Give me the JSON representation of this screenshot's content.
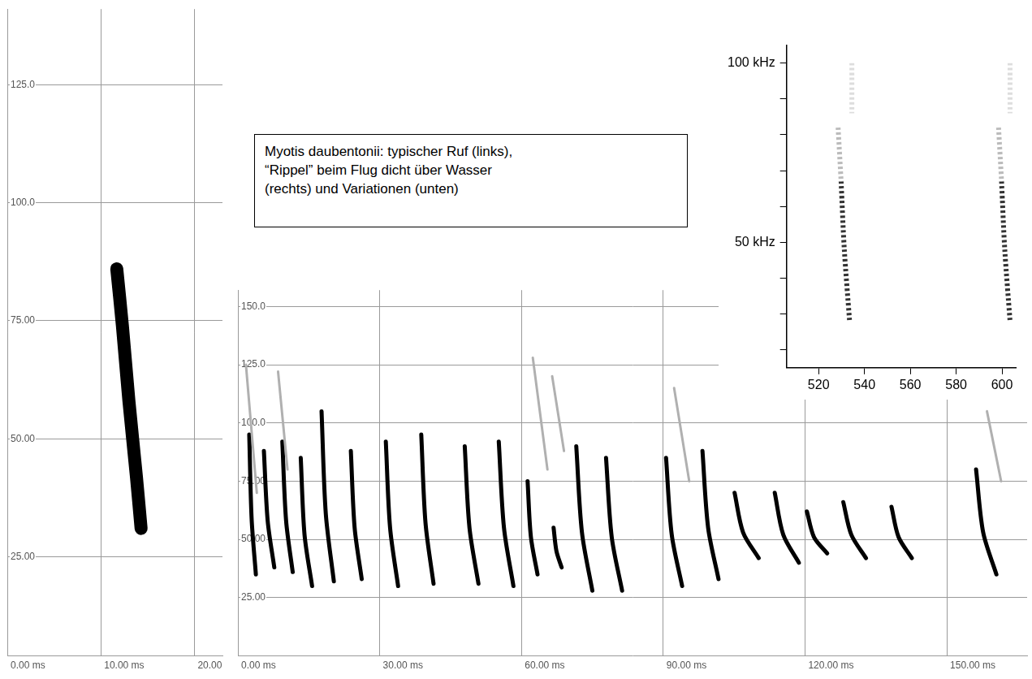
{
  "caption": [
    "Myotis daubentonii: typischer Ruf (links),",
    "“Rippel” beim Flug dicht über Wasser",
    "(rechts) und Variationen (unten)"
  ],
  "chart_data": [
    {
      "type": "line",
      "grid": true,
      "xlim": [
        0,
        23
      ],
      "xticks": [
        {
          "value": 0,
          "label": "0.00 ms"
        },
        {
          "value": 10,
          "label": "10.00 ms"
        },
        {
          "value": 20,
          "label": "20.00"
        }
      ],
      "ylim": [
        4,
        141
      ],
      "yticks": [
        {
          "value": 25,
          "label": "25.00"
        },
        {
          "value": 50,
          "label": "50.00"
        },
        {
          "value": 75,
          "label": "75.00"
        },
        {
          "value": 100,
          "label": "100.0"
        },
        {
          "value": 125,
          "label": "125.0"
        }
      ],
      "series": [
        {
          "color": "#000000",
          "x": [
            11.7,
            12.3,
            13.0,
            13.8,
            14.3
          ],
          "values": [
            86,
            74,
            58,
            42,
            31
          ]
        }
      ]
    },
    {
      "type": "line",
      "grid": true,
      "xlim": [
        0,
        167
      ],
      "xticks": [
        {
          "value": 0,
          "label": "0.00 ms"
        },
        {
          "value": 30,
          "label": "30.00 ms"
        },
        {
          "value": 60,
          "label": "60.00 ms"
        },
        {
          "value": 90,
          "label": "90.00 ms"
        },
        {
          "value": 120,
          "label": "120.00 ms"
        },
        {
          "value": 150,
          "label": "150.00 ms"
        }
      ],
      "ylim": [
        0,
        157
      ],
      "yticks": [
        {
          "value": 25,
          "label": "25.00"
        },
        {
          "value": 50,
          "label": "50.00"
        },
        {
          "value": 75,
          "label": "75.00"
        },
        {
          "value": 100,
          "label": "100.0"
        },
        {
          "value": 125,
          "label": "125.0"
        },
        {
          "value": 150,
          "label": "150.0"
        }
      ],
      "series": [
        {
          "color": "#b0b0b0",
          "x": [
            1.7,
            4.0
          ],
          "values": [
            125,
            70
          ]
        },
        {
          "color": "#b0b0b0",
          "x": [
            8.5,
            10.5
          ],
          "values": [
            122,
            80
          ]
        },
        {
          "color": "#b0b0b0",
          "x": [
            62.4,
            65.5
          ],
          "values": [
            128,
            80
          ]
        },
        {
          "color": "#b0b0b0",
          "x": [
            66.5,
            69.0
          ],
          "values": [
            120,
            88
          ]
        },
        {
          "color": "#b0b0b0",
          "x": [
            92.3,
            95.5
          ],
          "values": [
            115,
            75
          ]
        },
        {
          "color": "#b0b0b0",
          "x": [
            158.5,
            161.5
          ],
          "values": [
            105,
            75
          ]
        },
        {
          "color": "#000000",
          "x": [
            2.4,
            2.9,
            3.8
          ],
          "values": [
            95,
            59,
            35
          ]
        },
        {
          "color": "#000000",
          "x": [
            5.5,
            6.3,
            7.7
          ],
          "values": [
            88,
            58,
            38
          ]
        },
        {
          "color": "#000000",
          "x": [
            9.4,
            10.2,
            11.6
          ],
          "values": [
            92,
            58,
            36
          ]
        },
        {
          "color": "#000000",
          "x": [
            13.3,
            14.1,
            15.7
          ],
          "values": [
            85,
            52,
            30
          ]
        },
        {
          "color": "#000000",
          "x": [
            17.7,
            18.6,
            20.3
          ],
          "values": [
            105,
            61,
            32
          ]
        },
        {
          "color": "#000000",
          "x": [
            23.9,
            24.7,
            26.2
          ],
          "values": [
            88,
            55,
            33
          ]
        },
        {
          "color": "#000000",
          "x": [
            31.3,
            32.2,
            33.9
          ],
          "values": [
            92,
            55,
            30
          ]
        },
        {
          "color": "#000000",
          "x": [
            38.8,
            39.7,
            41.4
          ],
          "values": [
            95,
            57,
            31
          ]
        },
        {
          "color": "#000000",
          "x": [
            48.0,
            49.0,
            50.9
          ],
          "values": [
            90,
            55,
            31
          ]
        },
        {
          "color": "#000000",
          "x": [
            55.2,
            56.3,
            58.3
          ],
          "values": [
            92,
            55,
            30
          ]
        },
        {
          "color": "#000000",
          "x": [
            61.3,
            62.0,
            63.4
          ],
          "values": [
            75,
            51,
            35
          ]
        },
        {
          "color": "#000000",
          "x": [
            66.8,
            67.4,
            68.5
          ],
          "values": [
            55,
            45,
            38
          ]
        },
        {
          "color": "#000000",
          "x": [
            71.6,
            72.8,
            75.0
          ],
          "values": [
            90,
            53,
            28
          ]
        },
        {
          "color": "#000000",
          "x": [
            77.9,
            79.1,
            81.3
          ],
          "values": [
            85,
            51,
            28
          ]
        },
        {
          "color": "#000000",
          "x": [
            90.6,
            91.8,
            94.0
          ],
          "values": [
            85,
            52,
            30
          ]
        },
        {
          "color": "#000000",
          "x": [
            98.3,
            99.5,
            101.7
          ],
          "values": [
            88,
            55,
            33
          ]
        },
        {
          "color": "#000000",
          "x": [
            105.1,
            106.9,
            110.2
          ],
          "values": [
            70,
            53,
            42
          ]
        },
        {
          "color": "#000000",
          "x": [
            113.6,
            115.4,
            118.7
          ],
          "values": [
            70,
            52,
            40
          ]
        },
        {
          "color": "#000000",
          "x": [
            120.4,
            121.9,
            124.7
          ],
          "values": [
            62,
            51,
            44
          ]
        },
        {
          "color": "#000000",
          "x": [
            128.1,
            129.8,
            132.9
          ],
          "values": [
            66,
            52,
            42
          ]
        },
        {
          "color": "#000000",
          "x": [
            138.3,
            139.8,
            142.6
          ],
          "values": [
            64,
            51,
            42
          ]
        },
        {
          "color": "#000000",
          "x": [
            156.2,
            157.7,
            160.5
          ],
          "values": [
            80,
            53,
            35
          ]
        }
      ]
    },
    {
      "type": "line",
      "grid": false,
      "xlim": [
        506,
        606
      ],
      "xticks": [
        520,
        540,
        560,
        580,
        600
      ],
      "ylim": [
        15,
        105
      ],
      "yticks": [
        {
          "value": 50,
          "label": "50 kHz"
        },
        {
          "value": 100,
          "label": "100 kHz"
        }
      ],
      "yminor": [
        20,
        30,
        40,
        60,
        70,
        80,
        90
      ],
      "series": [
        {
          "color": "#dddddd",
          "x": [
            534.5,
            534.5
          ],
          "values": [
            100,
            86
          ],
          "line_style": "dotted"
        },
        {
          "color": "#bbbbbb",
          "x": [
            528.5,
            529.8
          ],
          "values": [
            82,
            67
          ],
          "line_style": "dotted"
        },
        {
          "color": "#333333",
          "x": [
            529.8,
            531.2,
            533.5
          ],
          "values": [
            67,
            48,
            28
          ],
          "line_style": "dotted"
        },
        {
          "color": "#dddddd",
          "x": [
            603.5,
            603.5
          ],
          "values": [
            100,
            86
          ],
          "line_style": "dotted"
        },
        {
          "color": "#bbbbbb",
          "x": [
            598.5,
            599.8
          ],
          "values": [
            82,
            67
          ],
          "line_style": "dotted"
        },
        {
          "color": "#333333",
          "x": [
            599.8,
            601.2,
            603.5
          ],
          "values": [
            67,
            48,
            28
          ],
          "line_style": "dotted"
        }
      ]
    }
  ]
}
